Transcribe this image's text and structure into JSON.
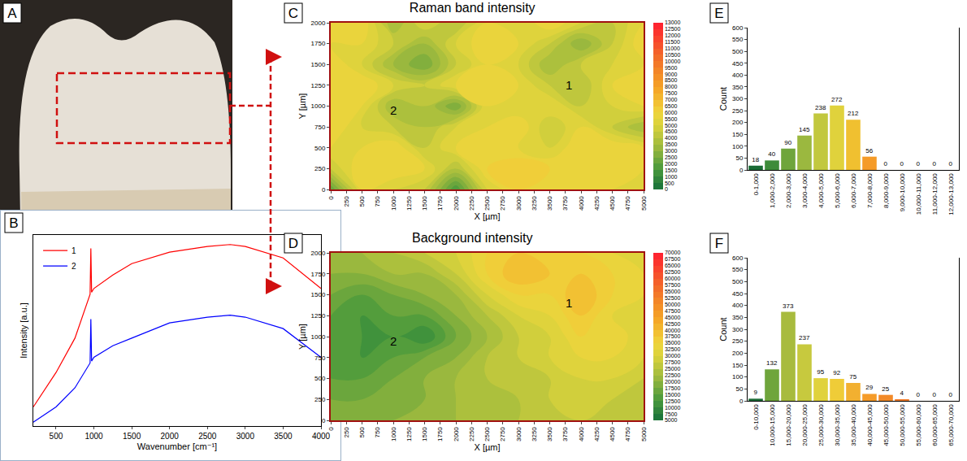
{
  "panel_labels": [
    "A",
    "B",
    "C",
    "D",
    "E",
    "F"
  ],
  "chart_data": [
    {
      "type": "line",
      "x_label": "Wavenumber [cm⁻¹]",
      "y_label": "Intensity [a.u.]",
      "x": [
        200,
        500,
        750,
        950,
        960,
        970,
        1000,
        1250,
        1500,
        1750,
        2000,
        2500,
        2800,
        3000,
        3500,
        4000
      ],
      "series": [
        {
          "name": "1",
          "color": "#ff0000",
          "values": [
            10,
            28,
            46,
            69,
            93,
            70,
            72,
            79,
            85,
            88,
            91,
            94,
            95,
            94,
            88,
            72
          ]
        },
        {
          "name": "2",
          "color": "#0000ff",
          "values": [
            2,
            10,
            20,
            33,
            56,
            34,
            36,
            42,
            46,
            50,
            54,
            57,
            58,
            57,
            51,
            36
          ]
        }
      ],
      "xlim": [
        200,
        4000
      ],
      "xticks": [
        500,
        1000,
        1500,
        2000,
        2500,
        3000,
        3500,
        4000
      ],
      "ylim": [
        0,
        100
      ],
      "tick_labels": "x",
      "legend": "top left",
      "grid": false
    },
    {
      "type": "contour",
      "title": "Raman band intensity",
      "x_label": "X [µm]",
      "y_label": "Y [µm]",
      "x": [
        0,
        500,
        1000,
        1500,
        2000,
        2500,
        3000,
        3500,
        4000,
        4500,
        5000
      ],
      "y": [
        0,
        250,
        500,
        750,
        1000,
        1250,
        1500,
        1750,
        2000
      ],
      "z": [
        [
          2000,
          5500,
          5000,
          4500,
          1500,
          5000,
          6000,
          5500,
          6000,
          5500,
          5000
        ],
        [
          4500,
          6000,
          6000,
          5500,
          4000,
          6000,
          6500,
          6000,
          6000,
          6000,
          5500
        ],
        [
          5500,
          5500,
          6000,
          4500,
          5500,
          6000,
          5500,
          5000,
          6000,
          6000,
          5500
        ],
        [
          6000,
          5000,
          4500,
          4000,
          5000,
          5500,
          6000,
          4500,
          5500,
          4500,
          3500
        ],
        [
          6000,
          5500,
          3500,
          4000,
          2500,
          5500,
          5000,
          5500,
          4500,
          5000,
          5500
        ],
        [
          5500,
          6000,
          5000,
          4500,
          5500,
          6000,
          5500,
          4500,
          4000,
          5500,
          6000
        ],
        [
          6000,
          5000,
          3500,
          2500,
          4500,
          5500,
          5000,
          3500,
          4500,
          5000,
          5500
        ],
        [
          5500,
          5500,
          4500,
          3500,
          5000,
          6000,
          5500,
          4500,
          3000,
          4500,
          6000
        ],
        [
          6000,
          6000,
          3500,
          5000,
          4000,
          5500,
          5000,
          6000,
          5000,
          4500,
          5500
        ]
      ],
      "xlim": [
        0,
        5000
      ],
      "xticks": [
        0,
        250,
        500,
        750,
        1000,
        1250,
        1500,
        1750,
        2000,
        2250,
        2500,
        2750,
        3000,
        3250,
        3500,
        3750,
        4000,
        4250,
        4500,
        4750,
        5000
      ],
      "ylim": [
        0,
        2000
      ],
      "yticks": [
        0,
        250,
        500,
        750,
        1000,
        1250,
        1500,
        1750,
        2000
      ],
      "zlim": [
        0,
        13000
      ],
      "zticks": [
        0,
        500,
        1000,
        1500,
        2000,
        2500,
        3000,
        3500,
        4000,
        4500,
        5000,
        5500,
        6000,
        6500,
        7000,
        7500,
        8000,
        8500,
        9000,
        9500,
        10000,
        10500,
        11000,
        11500,
        12000,
        12500,
        13000
      ],
      "annotations": [
        {
          "text": "1",
          "x": 3800,
          "y": 1250
        },
        {
          "text": "2",
          "x": 1000,
          "y": 950
        }
      ],
      "grid": false
    },
    {
      "type": "contour",
      "title": "Background intensity",
      "x_label": "X [µm]",
      "y_label": "Y [µm]",
      "x": [
        0,
        500,
        1000,
        1500,
        2000,
        2500,
        3000,
        3500,
        4000,
        4500,
        5000
      ],
      "y": [
        0,
        250,
        500,
        750,
        1000,
        1250,
        1500,
        1750,
        2000
      ],
      "z": [
        [
          20000,
          20000,
          20000,
          22500,
          22500,
          25000,
          25000,
          27500,
          27500,
          27500,
          27500
        ],
        [
          17500,
          17500,
          20000,
          20000,
          22500,
          25000,
          25000,
          27500,
          30000,
          27500,
          27500
        ],
        [
          15000,
          15000,
          17500,
          20000,
          22500,
          25000,
          27500,
          27500,
          30000,
          30000,
          27500
        ],
        [
          15000,
          12500,
          15000,
          17500,
          20000,
          25000,
          27500,
          30000,
          32500,
          32500,
          30000
        ],
        [
          15000,
          12500,
          12500,
          10000,
          17500,
          22500,
          27500,
          30000,
          35000,
          35000,
          30000
        ],
        [
          15000,
          12500,
          15000,
          15000,
          20000,
          25000,
          30000,
          32500,
          37500,
          32500,
          30000
        ],
        [
          17500,
          15000,
          17500,
          20000,
          22500,
          30000,
          35000,
          35000,
          40000,
          35000,
          32500
        ],
        [
          20000,
          20000,
          22500,
          22500,
          27500,
          35000,
          40000,
          37500,
          37500,
          35000,
          32500
        ],
        [
          22500,
          22500,
          25000,
          27500,
          30000,
          35000,
          37500,
          35000,
          35000,
          32500,
          32500
        ]
      ],
      "xlim": [
        0,
        5000
      ],
      "xticks": [
        0,
        250,
        500,
        750,
        1000,
        1250,
        1500,
        1750,
        2000,
        2250,
        2500,
        2750,
        3000,
        3250,
        3500,
        3750,
        4000,
        4250,
        4500,
        4750,
        5000
      ],
      "ylim": [
        0,
        2000
      ],
      "yticks": [
        0,
        250,
        500,
        750,
        1000,
        1250,
        1500,
        1750,
        2000
      ],
      "zlim": [
        5000,
        70000
      ],
      "zticks": [
        5000,
        7500,
        10000,
        12500,
        15000,
        17500,
        20000,
        22500,
        25000,
        27500,
        30000,
        32500,
        35000,
        37500,
        40000,
        42500,
        45000,
        47500,
        50000,
        52500,
        55000,
        57500,
        60000,
        62500,
        65000,
        67500,
        70000
      ],
      "annotations": [
        {
          "text": "1",
          "x": 3800,
          "y": 1400
        },
        {
          "text": "2",
          "x": 1000,
          "y": 950
        }
      ],
      "grid": false
    },
    {
      "type": "bar",
      "y_label": "Count",
      "categories": [
        "0-1,000",
        "1,000-2,000",
        "2,000-3,000",
        "3,000-4,000",
        "4,000-5,000",
        "5,000-6,000",
        "6,000-7,000",
        "7,000-8,000",
        "8,000-9,000",
        "9,000-10,000",
        "10,000-11,000",
        "11,000-12,000",
        "12,000-13,000"
      ],
      "values": [
        18,
        40,
        90,
        145,
        238,
        272,
        212,
        56,
        0,
        0,
        0,
        0,
        0
      ],
      "colors": [
        "#1a6b35",
        "#3d8b3a",
        "#6fa53c",
        "#9bb83f",
        "#c2c83e",
        "#e0d23c",
        "#f0c030",
        "#f59b28",
        "#f07a2a",
        "#f05a2a",
        "#f04030",
        "#f03030",
        "#ff2020"
      ],
      "ylim": [
        0,
        600
      ],
      "yticks": [
        0,
        50,
        100,
        150,
        200,
        250,
        300,
        350,
        400,
        450,
        500,
        550,
        600
      ],
      "data_labels": true,
      "grid": false
    },
    {
      "type": "bar",
      "y_label": "Count",
      "categories": [
        "0-10,000",
        "10,000-15,000",
        "15,000-20,000",
        "20,000-25,000",
        "25,000-30,000",
        "30,000-35,000",
        "35,000-40,000",
        "40,000-45,000",
        "45,000-50,000",
        "50,000-55,000",
        "55,000-60,000",
        "60,000-65,000",
        "65,000-70,000"
      ],
      "values": [
        9,
        132,
        373,
        237,
        95,
        92,
        75,
        29,
        25,
        4,
        0,
        0,
        0
      ],
      "colors": [
        "#1a6b35",
        "#6fa53c",
        "#a8bb3e",
        "#c7c93e",
        "#e0d23c",
        "#efcc38",
        "#f2b030",
        "#f59b28",
        "#f28a28",
        "#f07a2a",
        "#f05a2a",
        "#f04030",
        "#ff2020"
      ],
      "ylim": [
        0,
        600
      ],
      "yticks": [
        0,
        50,
        100,
        150,
        200,
        250,
        300,
        350,
        400,
        450,
        500,
        550,
        600
      ],
      "data_labels": true,
      "grid": false
    }
  ]
}
